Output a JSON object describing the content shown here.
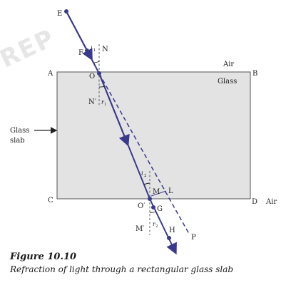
{
  "watermark": "REP",
  "labels": {
    "E": "E",
    "F": "F",
    "i": "i",
    "i_sub": "1",
    "N": "N",
    "A": "A",
    "B": "B",
    "O": "O",
    "air_top": "Air",
    "glass": "Glass",
    "N_prime": "N′",
    "r": "r",
    "r_sub": "1",
    "glass_slab_1": "Glass",
    "glass_slab_2": "slab",
    "i2": "i",
    "i2_sub": "2",
    "M": "M",
    "L": "L",
    "C": "C",
    "O_prime": "O′",
    "G": "G",
    "D": "D",
    "air_bottom": "Air",
    "M_prime": "M′",
    "r2": "r",
    "r2_sub": "2",
    "H": "H",
    "P": "P"
  },
  "caption": {
    "figure_number": "Figure  10.10",
    "title": "Refraction of light through a rectangular glass slab"
  },
  "colors": {
    "ray": "#3a3a8c",
    "slab_fill": "#e3e3e3",
    "slab_border": "#555555",
    "normal": "#555555"
  }
}
